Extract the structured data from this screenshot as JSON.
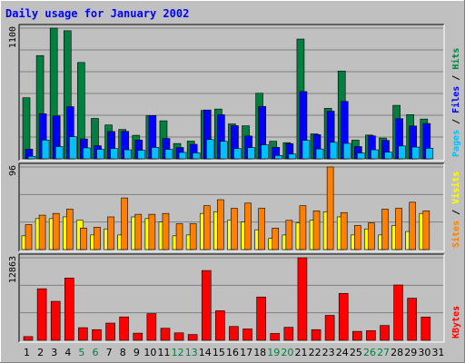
{
  "title": "Daily usage for January 2002",
  "colors": {
    "background": "#c0c0c0",
    "panel": "#c0c0c0",
    "hits": "#008040",
    "files": "#0000ff",
    "pages": "#00c0ff",
    "visits": "#ffff00",
    "sites": "#ff8000",
    "kbytes": "#ff0000",
    "weekend_label": "#008040"
  },
  "chart_data": [
    {
      "type": "bar",
      "name": "hits-files-pages",
      "ylabel_parts": [
        "Pages",
        "Files",
        "Hits"
      ],
      "ymax_label": "1100",
      "ylim": [
        0,
        1100
      ],
      "categories": [
        "1",
        "2",
        "3",
        "4",
        "5",
        "6",
        "7",
        "8",
        "9",
        "10",
        "11",
        "12",
        "13",
        "14",
        "15",
        "16",
        "17",
        "18",
        "19",
        "20",
        "21",
        "22",
        "23",
        "24",
        "25",
        "26",
        "27",
        "28",
        "29",
        "30",
        "31"
      ],
      "series": [
        {
          "name": "Hits",
          "values": [
            514,
            869,
            1100,
            1078,
            811,
            340,
            285,
            247,
            198,
            362,
            320,
            129,
            149,
            407,
            419,
            294,
            278,
            552,
            148,
            136,
            1008,
            210,
            425,
            739,
            157,
            200,
            175,
            450,
            372,
            335,
            0
          ]
        },
        {
          "name": "Files",
          "values": [
            81,
            379,
            361,
            439,
            167,
            110,
            230,
            231,
            158,
            364,
            171,
            95,
            122,
            411,
            371,
            279,
            192,
            441,
            96,
            128,
            566,
            203,
            401,
            483,
            103,
            193,
            155,
            338,
            276,
            297,
            0
          ]
        },
        {
          "name": "Pages",
          "values": [
            21,
            158,
            103,
            186,
            92,
            80,
            86,
            76,
            72,
            96,
            80,
            54,
            50,
            162,
            147,
            86,
            95,
            118,
            28,
            40,
            155,
            83,
            139,
            130,
            49,
            76,
            56,
            108,
            99,
            89,
            0
          ]
        }
      ]
    },
    {
      "type": "bar",
      "name": "visits-sites",
      "ylabel_parts": [
        "Sites",
        "Visits"
      ],
      "ymax_label": "96",
      "ylim": [
        0,
        96
      ],
      "categories": [
        "1",
        "2",
        "3",
        "4",
        "5",
        "6",
        "7",
        "8",
        "9",
        "10",
        "11",
        "12",
        "13",
        "14",
        "15",
        "16",
        "17",
        "18",
        "19",
        "20",
        "21",
        "22",
        "23",
        "24",
        "25",
        "26",
        "27",
        "28",
        "29",
        "30",
        "31"
      ],
      "series": [
        {
          "name": "Visits",
          "values": [
            16,
            36,
            36,
            38,
            34,
            17,
            24,
            17,
            38,
            36,
            32,
            16,
            17,
            42,
            44,
            34,
            32,
            23,
            13,
            17,
            31,
            34,
            44,
            38,
            17,
            24,
            17,
            28,
            21,
            42,
            0
          ]
        },
        {
          "name": "Sites",
          "values": [
            29,
            40,
            42,
            47,
            25,
            26,
            38,
            60,
            41,
            41,
            42,
            30,
            30,
            51,
            58,
            48,
            54,
            48,
            25,
            34,
            51,
            45,
            96,
            43,
            28,
            31,
            47,
            48,
            55,
            45,
            0
          ]
        }
      ]
    },
    {
      "type": "bar",
      "name": "kbytes",
      "ylabel_parts": [
        "KBytes"
      ],
      "ymax_label": "12863",
      "ylim": [
        0,
        12863
      ],
      "categories": [
        "1",
        "2",
        "3",
        "4",
        "5",
        "6",
        "7",
        "8",
        "9",
        "10",
        "11",
        "12",
        "13",
        "14",
        "15",
        "16",
        "17",
        "18",
        "19",
        "20",
        "21",
        "22",
        "23",
        "24",
        "25",
        "26",
        "27",
        "28",
        "29",
        "30",
        "31"
      ],
      "series": [
        {
          "name": "KBytes",
          "values": [
            585,
            8031,
            6069,
            9709,
            1970,
            1662,
            2683,
            3648,
            1114,
            4154,
            1882,
            1163,
            906,
            10871,
            4610,
            2159,
            1771,
            6746,
            1066,
            2033,
            12863,
            1662,
            3887,
            7311,
            1396,
            1507,
            2313,
            8622,
            6561,
            3627,
            0
          ]
        }
      ]
    }
  ],
  "xaxis": {
    "weekend_days": [
      "5",
      "6",
      "12",
      "13",
      "19",
      "20",
      "26",
      "27"
    ]
  }
}
